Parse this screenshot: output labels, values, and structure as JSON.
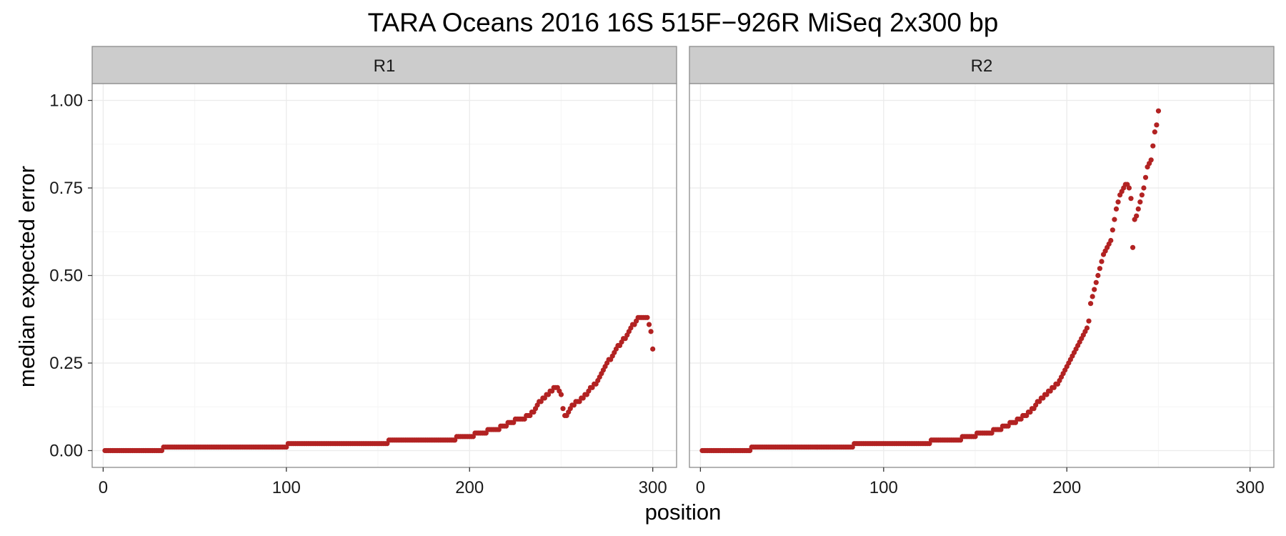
{
  "chart_data": {
    "type": "scatter",
    "title": "TARA Oceans 2016 16S 515F−926R MiSeq 2x300 bp",
    "xlabel": "position",
    "ylabel": "median expected error",
    "xlim": [
      -6,
      313
    ],
    "ylim": [
      -0.048,
      1.048
    ],
    "xticks": [
      0,
      100,
      200,
      300
    ],
    "xtick_labels": [
      "0",
      "100",
      "200",
      "300"
    ],
    "yticks": [
      0,
      0.25,
      0.5,
      0.75,
      1.0
    ],
    "ytick_labels": [
      "0.00",
      "0.25",
      "0.50",
      "0.75",
      "1.00"
    ],
    "grid": true,
    "point_color": "#b22222",
    "panels": [
      {
        "name": "R1",
        "segments": [
          {
            "x_start": 1,
            "x_end": 32,
            "y": 0.0
          },
          {
            "x_start": 33,
            "x_end": 100,
            "y": 0.01
          },
          {
            "x_start": 101,
            "x_end": 155,
            "y": 0.02
          },
          {
            "x_start": 156,
            "x_end": 192,
            "y": 0.03
          },
          {
            "x_start": 193,
            "x_end": 202,
            "y": 0.04
          },
          {
            "x_start": 203,
            "x_end": 209,
            "y": 0.05
          },
          {
            "x_start": 210,
            "x_end": 216,
            "y": 0.06
          },
          {
            "x_start": 217,
            "x_end": 220,
            "y": 0.07
          },
          {
            "x_start": 221,
            "x_end": 224,
            "y": 0.08
          },
          {
            "x_start": 225,
            "x_end": 230,
            "y": 0.09
          },
          {
            "x_start": 231,
            "x_end": 233,
            "y": 0.1
          }
        ],
        "points": [
          [
            234,
            0.11
          ],
          [
            235,
            0.11
          ],
          [
            236,
            0.12
          ],
          [
            237,
            0.13
          ],
          [
            238,
            0.14
          ],
          [
            239,
            0.14
          ],
          [
            240,
            0.15
          ],
          [
            241,
            0.15
          ],
          [
            242,
            0.16
          ],
          [
            243,
            0.16
          ],
          [
            244,
            0.17
          ],
          [
            245,
            0.17
          ],
          [
            246,
            0.18
          ],
          [
            247,
            0.18
          ],
          [
            248,
            0.18
          ],
          [
            249,
            0.17
          ],
          [
            250,
            0.16
          ],
          [
            251,
            0.12
          ],
          [
            252,
            0.1
          ],
          [
            253,
            0.1
          ],
          [
            254,
            0.11
          ],
          [
            255,
            0.12
          ],
          [
            256,
            0.13
          ],
          [
            257,
            0.13
          ],
          [
            258,
            0.14
          ],
          [
            259,
            0.14
          ],
          [
            260,
            0.14
          ],
          [
            261,
            0.15
          ],
          [
            262,
            0.15
          ],
          [
            263,
            0.16
          ],
          [
            264,
            0.16
          ],
          [
            265,
            0.17
          ],
          [
            266,
            0.18
          ],
          [
            267,
            0.18
          ],
          [
            268,
            0.19
          ],
          [
            269,
            0.19
          ],
          [
            270,
            0.2
          ],
          [
            271,
            0.21
          ],
          [
            272,
            0.22
          ],
          [
            273,
            0.23
          ],
          [
            274,
            0.24
          ],
          [
            275,
            0.25
          ],
          [
            276,
            0.26
          ],
          [
            277,
            0.26
          ],
          [
            278,
            0.27
          ],
          [
            279,
            0.28
          ],
          [
            280,
            0.29
          ],
          [
            281,
            0.3
          ],
          [
            282,
            0.3
          ],
          [
            283,
            0.31
          ],
          [
            284,
            0.32
          ],
          [
            285,
            0.32
          ],
          [
            286,
            0.33
          ],
          [
            287,
            0.34
          ],
          [
            288,
            0.35
          ],
          [
            289,
            0.36
          ],
          [
            290,
            0.36
          ],
          [
            291,
            0.37
          ],
          [
            292,
            0.38
          ],
          [
            293,
            0.38
          ],
          [
            294,
            0.38
          ],
          [
            295,
            0.38
          ],
          [
            296,
            0.38
          ],
          [
            297,
            0.38
          ],
          [
            298,
            0.36
          ],
          [
            299,
            0.34
          ],
          [
            300,
            0.29
          ]
        ]
      },
      {
        "name": "R2",
        "segments": [
          {
            "x_start": 1,
            "x_end": 27,
            "y": 0.0
          },
          {
            "x_start": 28,
            "x_end": 83,
            "y": 0.01
          },
          {
            "x_start": 84,
            "x_end": 125,
            "y": 0.02
          },
          {
            "x_start": 126,
            "x_end": 142,
            "y": 0.03
          },
          {
            "x_start": 143,
            "x_end": 150,
            "y": 0.04
          },
          {
            "x_start": 151,
            "x_end": 159,
            "y": 0.05
          },
          {
            "x_start": 160,
            "x_end": 164,
            "y": 0.06
          },
          {
            "x_start": 165,
            "x_end": 168,
            "y": 0.07
          },
          {
            "x_start": 169,
            "x_end": 172,
            "y": 0.08
          },
          {
            "x_start": 173,
            "x_end": 175,
            "y": 0.09
          },
          {
            "x_start": 176,
            "x_end": 178,
            "y": 0.1
          }
        ],
        "points": [
          [
            179,
            0.11
          ],
          [
            180,
            0.11
          ],
          [
            181,
            0.12
          ],
          [
            182,
            0.12
          ],
          [
            183,
            0.13
          ],
          [
            184,
            0.14
          ],
          [
            185,
            0.14
          ],
          [
            186,
            0.15
          ],
          [
            187,
            0.15
          ],
          [
            188,
            0.16
          ],
          [
            189,
            0.16
          ],
          [
            190,
            0.17
          ],
          [
            191,
            0.17
          ],
          [
            192,
            0.18
          ],
          [
            193,
            0.18
          ],
          [
            194,
            0.19
          ],
          [
            195,
            0.19
          ],
          [
            196,
            0.2
          ],
          [
            197,
            0.21
          ],
          [
            198,
            0.22
          ],
          [
            199,
            0.23
          ],
          [
            200,
            0.24
          ],
          [
            201,
            0.25
          ],
          [
            202,
            0.26
          ],
          [
            203,
            0.27
          ],
          [
            204,
            0.28
          ],
          [
            205,
            0.29
          ],
          [
            206,
            0.3
          ],
          [
            207,
            0.31
          ],
          [
            208,
            0.32
          ],
          [
            209,
            0.33
          ],
          [
            210,
            0.34
          ],
          [
            211,
            0.35
          ],
          [
            212,
            0.37
          ],
          [
            213,
            0.42
          ],
          [
            214,
            0.44
          ],
          [
            215,
            0.46
          ],
          [
            216,
            0.48
          ],
          [
            217,
            0.5
          ],
          [
            218,
            0.52
          ],
          [
            219,
            0.54
          ],
          [
            220,
            0.56
          ],
          [
            221,
            0.57
          ],
          [
            222,
            0.58
          ],
          [
            223,
            0.59
          ],
          [
            224,
            0.6
          ],
          [
            225,
            0.63
          ],
          [
            226,
            0.66
          ],
          [
            227,
            0.69
          ],
          [
            228,
            0.71
          ],
          [
            229,
            0.73
          ],
          [
            230,
            0.74
          ],
          [
            231,
            0.75
          ],
          [
            232,
            0.76
          ],
          [
            233,
            0.76
          ],
          [
            234,
            0.75
          ],
          [
            235,
            0.72
          ],
          [
            236,
            0.58
          ],
          [
            237,
            0.66
          ],
          [
            238,
            0.67
          ],
          [
            239,
            0.69
          ],
          [
            240,
            0.71
          ],
          [
            241,
            0.73
          ],
          [
            242,
            0.75
          ],
          [
            243,
            0.78
          ],
          [
            244,
            0.81
          ],
          [
            245,
            0.82
          ],
          [
            246,
            0.83
          ],
          [
            247,
            0.87
          ],
          [
            248,
            0.91
          ],
          [
            249,
            0.93
          ],
          [
            250,
            0.97
          ]
        ]
      }
    ]
  }
}
